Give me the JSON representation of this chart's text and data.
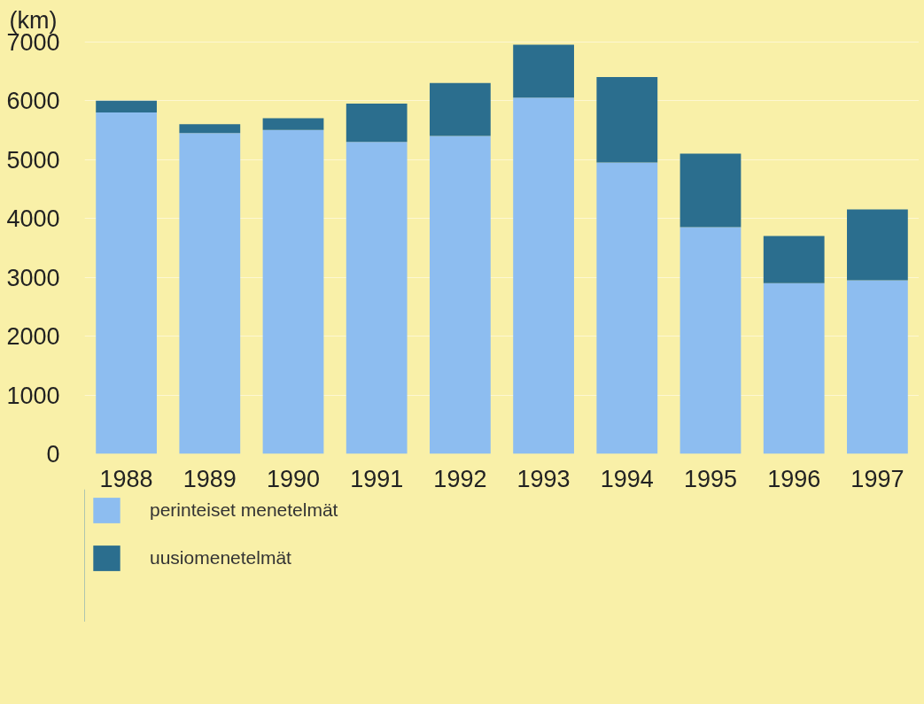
{
  "chart_data": {
    "type": "bar",
    "stacked": true,
    "ylabel": "(km)",
    "categories": [
      "1988",
      "1989",
      "1990",
      "1991",
      "1992",
      "1993",
      "1994",
      "1995",
      "1996",
      "1997"
    ],
    "series": [
      {
        "name": "perinteiset menetelmät",
        "color": "#8dbdf0",
        "values": [
          5800,
          5450,
          5500,
          5300,
          5400,
          6050,
          4950,
          3850,
          2900,
          2950
        ]
      },
      {
        "name": "uusiomenetelmät",
        "color": "#2b6e8e",
        "values": [
          200,
          150,
          200,
          650,
          900,
          900,
          1450,
          1250,
          800,
          1200
        ]
      }
    ],
    "ylim": [
      0,
      7000
    ],
    "yticks": [
      0,
      1000,
      2000,
      3000,
      4000,
      5000,
      6000,
      7000
    ],
    "grid": "y",
    "legend": "bottom"
  }
}
